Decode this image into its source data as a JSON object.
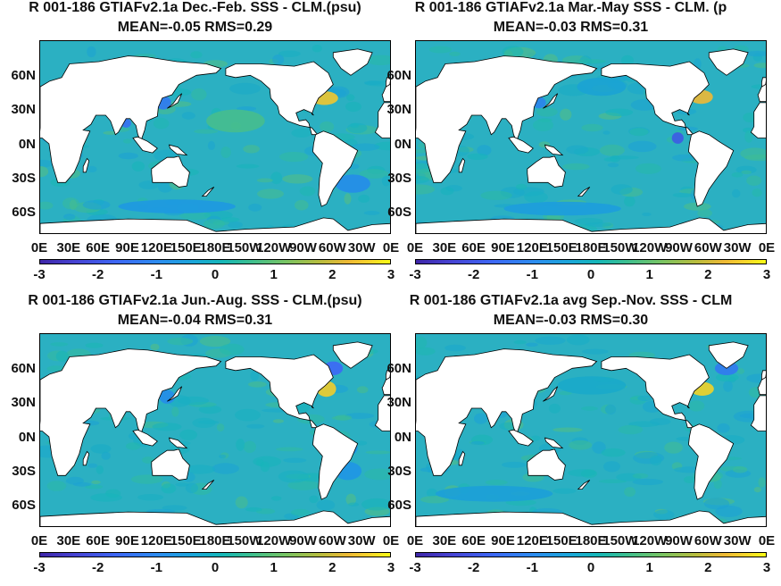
{
  "panels": [
    {
      "title_line1": "R 001-186 GTIAFv2.1a  Dec.-Feb. SSS - CLM.(psu)",
      "title_line2": "MEAN=-0.05   RMS=0.29",
      "mean": -0.05,
      "rms": 0.29
    },
    {
      "title_line1": "R 001-186 GTIAFv2.1a Mar.-May SSS - CLM. (p",
      "title_line2": "MEAN=-0.03   RMS=0.31",
      "mean": -0.03,
      "rms": 0.31
    },
    {
      "title_line1": "R 001-186 GTIAFv2.1a Jun.-Aug. SSS - CLM.(psu)",
      "title_line2": "MEAN=-0.04   RMS=0.31",
      "mean": -0.04,
      "rms": 0.31
    },
    {
      "title_line1": "R 001-186 GTIAFv2.1a avg Sep.-Nov. SSS - CLM",
      "title_line2": "MEAN=-0.03   RMS=0.30",
      "mean": -0.03,
      "rms": 0.3
    }
  ],
  "lat_ticks": [
    "60N",
    "30N",
    "0N",
    "30S",
    "60S"
  ],
  "lon_ticks": [
    "0E",
    "30E",
    "60E",
    "90E",
    "120E",
    "150E",
    "180E",
    "150W",
    "120W",
    "90W",
    "60W",
    "30W",
    "0E"
  ],
  "colorbar_ticks": [
    "-3",
    "-2",
    "-1",
    "0",
    "1",
    "2",
    "3"
  ],
  "chart_data": [
    {
      "type": "heatmap",
      "title": "R 001-186 GTIAFv2.1a  Dec.-Feb. SSS - CLM.(psu)",
      "subtitle": "MEAN=-0.05   RMS=0.29",
      "x_ticks": [
        "0E",
        "30E",
        "60E",
        "90E",
        "120E",
        "150E",
        "180E",
        "150W",
        "120W",
        "90W",
        "60W",
        "30W",
        "0E"
      ],
      "y_ticks": [
        "60N",
        "30N",
        "0N",
        "30S",
        "60S"
      ],
      "xlim": [
        0,
        360
      ],
      "ylim": [
        -80,
        90
      ],
      "color_range": [
        -3,
        3
      ],
      "colormap": "parula"
    },
    {
      "type": "heatmap",
      "title": "R 001-186 GTIAFv2.1a Mar.-May SSS - CLM. (p",
      "subtitle": "MEAN=-0.03   RMS=0.31",
      "x_ticks": [
        "0E",
        "30E",
        "60E",
        "90E",
        "120E",
        "150E",
        "180E",
        "150W",
        "120W",
        "90W",
        "60W",
        "30W",
        "0E"
      ],
      "y_ticks": [
        "60N",
        "30N",
        "0N",
        "30S",
        "60S"
      ],
      "xlim": [
        0,
        360
      ],
      "ylim": [
        -80,
        90
      ],
      "color_range": [
        -3,
        3
      ],
      "colormap": "parula"
    },
    {
      "type": "heatmap",
      "title": "R 001-186 GTIAFv2.1a Jun.-Aug. SSS - CLM.(psu)",
      "subtitle": "MEAN=-0.04   RMS=0.31",
      "x_ticks": [
        "0E",
        "30E",
        "60E",
        "90E",
        "120E",
        "150E",
        "180E",
        "150W",
        "120W",
        "90W",
        "60W",
        "30W",
        "0E"
      ],
      "y_ticks": [
        "60N",
        "30N",
        "0N",
        "30S",
        "60S"
      ],
      "xlim": [
        0,
        360
      ],
      "ylim": [
        -80,
        90
      ],
      "color_range": [
        -3,
        3
      ],
      "colormap": "parula"
    },
    {
      "type": "heatmap",
      "title": "R 001-186 GTIAFv2.1a avg Sep.-Nov. SSS - CLM",
      "subtitle": "MEAN=-0.03   RMS=0.30",
      "x_ticks": [
        "0E",
        "30E",
        "60E",
        "90E",
        "120E",
        "150E",
        "180E",
        "150W",
        "120W",
        "90W",
        "60W",
        "30W",
        "0E"
      ],
      "y_ticks": [
        "60N",
        "30N",
        "0N",
        "30S",
        "60S"
      ],
      "xlim": [
        0,
        360
      ],
      "ylim": [
        -80,
        90
      ],
      "color_range": [
        -3,
        3
      ],
      "colormap": "parula"
    }
  ],
  "colors": {
    "ocean_base": "#2bb0c2",
    "ocean_low": "#3d84e0",
    "ocean_high": "#f2c531",
    "land": "#ffffff"
  }
}
